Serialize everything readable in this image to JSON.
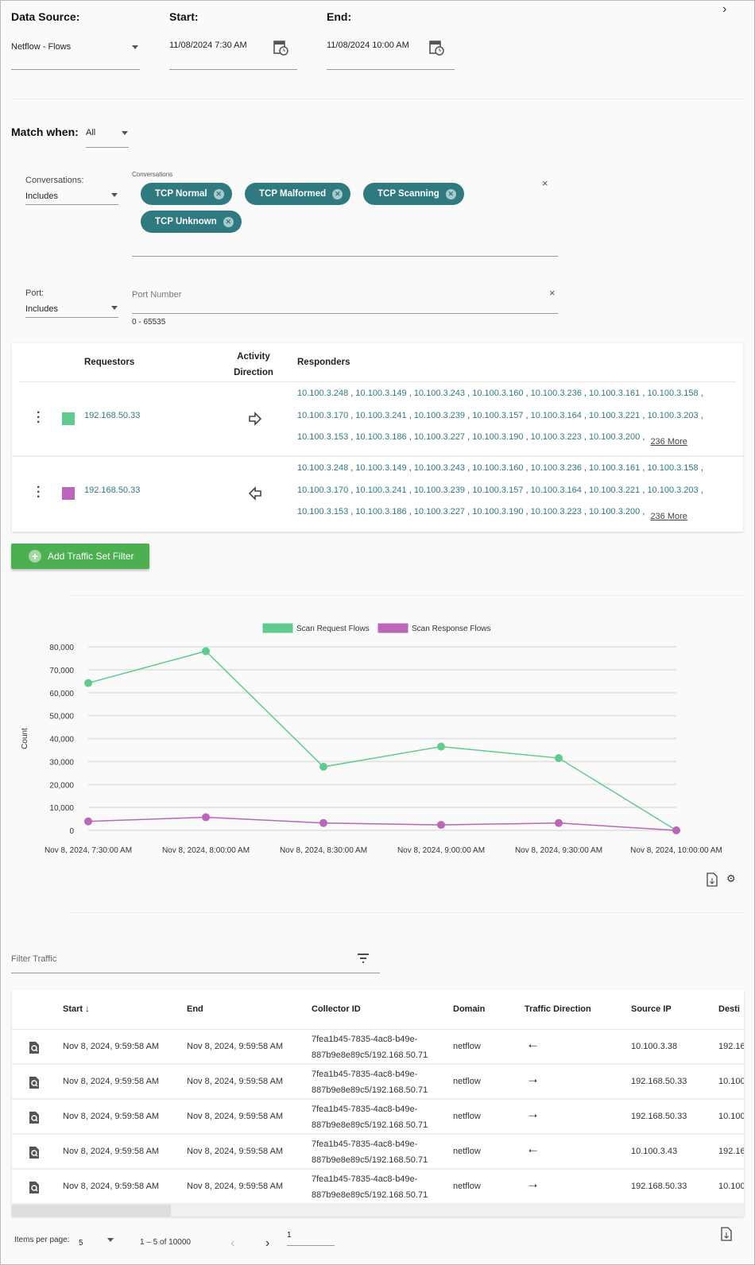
{
  "header": {
    "data_source_label": "Data Source:",
    "start_label": "Start:",
    "end_label": "End:",
    "data_source_value": "Netflow - Flows",
    "start_value": "11/08/2024 7:30 AM",
    "end_value": "11/08/2024 10:00 AM"
  },
  "match": {
    "label": "Match when:",
    "value": "All"
  },
  "conversations": {
    "label": "Conversations:",
    "mode": "Includes",
    "field_label": "Conversations",
    "chips": [
      "TCP Normal",
      "TCP Malformed",
      "TCP Scanning",
      "TCP Unknown"
    ]
  },
  "port": {
    "label": "Port:",
    "mode": "Includes",
    "placeholder": "Port Number",
    "hint": "0 - 65535"
  },
  "traffic_sets": {
    "headers": {
      "requestors": "Requestors",
      "activity": "Activity",
      "direction": "Direction",
      "responders": "Responders"
    },
    "rows": [
      {
        "color": "#5fcb8c",
        "requestor": "192.168.50.33",
        "direction": "right",
        "responders": [
          [
            "10.100.3.248",
            "10.100.3.149",
            "10.100.3.243",
            "10.100.3.160",
            "10.100.3.236",
            "10.100.3.161",
            "10.100.3.158"
          ],
          [
            "10.100.3.170",
            "10.100.3.241",
            "10.100.3.239",
            "10.100.3.157",
            "10.100.3.164",
            "10.100.3.221",
            "10.100.3.203"
          ],
          [
            "10.100.3.153",
            "10.100.3.186",
            "10.100.3.227",
            "10.100.3.190",
            "10.100.3.223",
            "10.100.3.200"
          ]
        ],
        "more": "236 More"
      },
      {
        "color": "#bb66bb",
        "requestor": "192.168.50.33",
        "direction": "left",
        "responders": [
          [
            "10.100.3.248",
            "10.100.3.149",
            "10.100.3.243",
            "10.100.3.160",
            "10.100.3.236",
            "10.100.3.161",
            "10.100.3.158"
          ],
          [
            "10.100.3.170",
            "10.100.3.241",
            "10.100.3.239",
            "10.100.3.157",
            "10.100.3.164",
            "10.100.3.221",
            "10.100.3.203"
          ],
          [
            "10.100.3.153",
            "10.100.3.186",
            "10.100.3.227",
            "10.100.3.190",
            "10.100.3.223",
            "10.100.3.200"
          ]
        ],
        "more": "236 More"
      }
    ],
    "add_button": "Add Traffic Set Filter"
  },
  "chart_data": {
    "type": "line",
    "categories": [
      "Nov 8, 2024, 7:30:00 AM",
      "Nov 8, 2024, 8:00:00 AM",
      "Nov 8, 2024, 8:30:00 AM",
      "Nov 8, 2024, 9:00:00 AM",
      "Nov 8, 2024, 9:30:00 AM",
      "Nov 8, 2024, 10:00:00 AM"
    ],
    "series": [
      {
        "name": "Scan Request Flows",
        "color": "#5fcb8c",
        "values": [
          64200,
          78100,
          27700,
          36500,
          31500,
          0
        ]
      },
      {
        "name": "Scan Response Flows",
        "color": "#bb66bb",
        "values": [
          3900,
          5700,
          3200,
          2400,
          3200,
          0
        ]
      }
    ],
    "ylabel": "Count",
    "ylim": [
      0,
      80000
    ],
    "yticks": [
      "0",
      "10,000",
      "20,000",
      "30,000",
      "40,000",
      "50,000",
      "60,000",
      "70,000",
      "80,000"
    ],
    "grid": true,
    "legend": "top"
  },
  "filter": {
    "placeholder": "Filter Traffic"
  },
  "table": {
    "headers": [
      "Start",
      "End",
      "Collector ID",
      "Domain",
      "Traffic Direction",
      "Source IP",
      "Desti"
    ],
    "rows": [
      {
        "start": "Nov 8, 2024, 9:59:58 AM",
        "end": "Nov 8, 2024, 9:59:58 AM",
        "c1": "7fea1b45-7835-4ac8-b49e-",
        "c2": "887b9e8e89c5/192.168.50.71",
        "domain": "netflow",
        "dir": "←",
        "src": "10.100.3.38",
        "dst": "192.16"
      },
      {
        "start": "Nov 8, 2024, 9:59:58 AM",
        "end": "Nov 8, 2024, 9:59:58 AM",
        "c1": "7fea1b45-7835-4ac8-b49e-",
        "c2": "887b9e8e89c5/192.168.50.71",
        "domain": "netflow",
        "dir": "→",
        "src": "192.168.50.33",
        "dst": "10.100"
      },
      {
        "start": "Nov 8, 2024, 9:59:58 AM",
        "end": "Nov 8, 2024, 9:59:58 AM",
        "c1": "7fea1b45-7835-4ac8-b49e-",
        "c2": "887b9e8e89c5/192.168.50.71",
        "domain": "netflow",
        "dir": "→",
        "src": "192.168.50.33",
        "dst": "10.100"
      },
      {
        "start": "Nov 8, 2024, 9:59:58 AM",
        "end": "Nov 8, 2024, 9:59:58 AM",
        "c1": "7fea1b45-7835-4ac8-b49e-",
        "c2": "887b9e8e89c5/192.168.50.71",
        "domain": "netflow",
        "dir": "←",
        "src": "10.100.3.43",
        "dst": "192.16"
      },
      {
        "start": "Nov 8, 2024, 9:59:58 AM",
        "end": "Nov 8, 2024, 9:59:58 AM",
        "c1": "7fea1b45-7835-4ac8-b49e-",
        "c2": "887b9e8e89c5/192.168.50.71",
        "domain": "netflow",
        "dir": "→",
        "src": "192.168.50.33",
        "dst": "10.100"
      }
    ]
  },
  "paginator": {
    "items_label": "Items per page:",
    "items_value": "5",
    "range": "1 – 5 of 10000",
    "page": "1"
  }
}
